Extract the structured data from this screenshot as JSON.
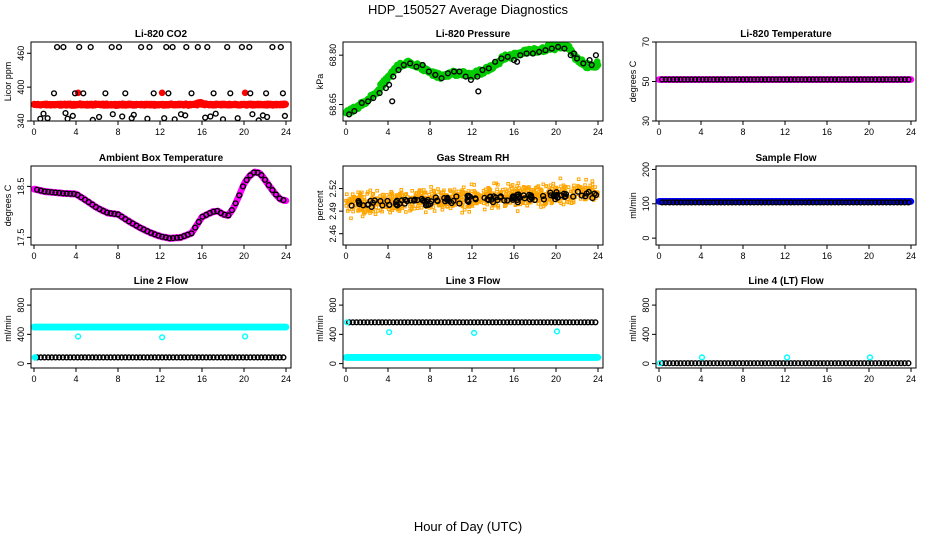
{
  "figure": {
    "title": "HDP_150527  Average Diagnostics",
    "xlabel": "Hour of Day (UTC)"
  },
  "chart_data": [
    {
      "id": "co2",
      "type": "scatter",
      "title": "Li-820 CO2",
      "ylabel": "Licor ppm",
      "xlim": [
        0,
        24
      ],
      "ylim": [
        340,
        480
      ],
      "xticks": [
        0,
        4,
        8,
        12,
        16,
        20,
        24
      ],
      "xtick_labels": [
        "0",
        "4",
        "8",
        "12",
        "16",
        "20",
        "24"
      ],
      "yticks": [
        340,
        400,
        460
      ],
      "ytick_labels": [
        "340",
        "400",
        "460"
      ],
      "series": [
        {
          "color": "#ff0000",
          "filled": true,
          "kind": "band",
          "x_range": [
            0,
            24
          ],
          "y_center": 369,
          "y_spread": 2,
          "bumps": [
            {
              "x": 15.8,
              "y": 374
            },
            {
              "x": 4.2,
              "y": 390
            },
            {
              "x": 12.2,
              "y": 390
            },
            {
              "x": 20.1,
              "y": 390
            }
          ]
        },
        {
          "color": "#000000",
          "filled": false,
          "kind": "points",
          "x": [
            2.2,
            2.8,
            4.3,
            5.4,
            7.4,
            8.1,
            10.2,
            11.0,
            12.6,
            13.2,
            14.5,
            15.6,
            16.5,
            18.4,
            19.8,
            20.5,
            22.7,
            23.5,
            1.9,
            3.9,
            4.7,
            6.8,
            8.7,
            11.4,
            12.8,
            15.0,
            17.1,
            18.7,
            20.6,
            22.1,
            23.7,
            0.6,
            1.3,
            3.2,
            3.7,
            5.6,
            6.2,
            8.4,
            9.3,
            10.8,
            12.4,
            13.4,
            14.4,
            16.3,
            16.8,
            18.0,
            19.4,
            21.4,
            22.2,
            23.9,
            0.9,
            3.0,
            7.5,
            9.5,
            14.0,
            17.3,
            20.8,
            21.8
          ],
          "y": [
            471,
            471,
            471,
            471,
            471,
            471,
            471,
            471,
            471,
            471,
            471,
            471,
            471,
            471,
            471,
            471,
            471,
            471,
            389,
            389,
            389,
            389,
            389,
            389,
            389,
            389,
            389,
            389,
            389,
            389,
            389,
            344,
            345,
            344,
            349,
            342,
            347,
            348,
            345,
            344,
            345,
            343,
            350,
            346,
            348,
            343,
            345,
            341,
            347,
            349,
            353,
            354,
            352,
            351,
            352,
            353,
            352,
            350
          ]
        }
      ]
    },
    {
      "id": "pressure",
      "type": "scatter",
      "title": "Li-820 Pressure",
      "ylabel": "kPa",
      "xlim": [
        0,
        24
      ],
      "ylim": [
        68.6,
        68.84
      ],
      "xticks": [
        0,
        4,
        8,
        12,
        16,
        20,
        24
      ],
      "xtick_labels": [
        "0",
        "4",
        "8",
        "12",
        "16",
        "20",
        "24"
      ],
      "yticks": [
        68.65,
        68.8
      ],
      "ytick_labels": [
        "68.65",
        "68.80"
      ],
      "series": [
        {
          "color": "#00cc00",
          "filled": true,
          "kind": "curve",
          "x": [
            0,
            1,
            2,
            3,
            4,
            5,
            6,
            7,
            8,
            9,
            10,
            11,
            12,
            13,
            14,
            15,
            16,
            17,
            18,
            19,
            20,
            21,
            22,
            23,
            24
          ],
          "y": [
            68.625,
            68.64,
            68.66,
            68.69,
            68.73,
            68.77,
            68.775,
            68.765,
            68.75,
            68.735,
            68.745,
            68.745,
            68.74,
            68.75,
            68.765,
            68.79,
            68.8,
            68.81,
            68.815,
            68.82,
            68.825,
            68.83,
            68.79,
            68.765,
            68.77
          ],
          "spread": 0.012
        },
        {
          "color": "#000000",
          "filled": false,
          "kind": "points",
          "x": [
            0.3,
            0.8,
            1.5,
            2.1,
            2.6,
            3.2,
            3.8,
            4.1,
            4.5,
            5.0,
            5.5,
            6.1,
            6.7,
            7.3,
            7.9,
            8.5,
            9.1,
            9.7,
            10.3,
            10.8,
            11.4,
            11.9,
            12.5,
            13.0,
            13.6,
            14.2,
            14.8,
            15.4,
            16.0,
            16.6,
            17.2,
            17.8,
            18.4,
            19.0,
            19.6,
            20.2,
            20.8,
            21.4,
            22.0,
            22.6,
            23.2,
            23.8,
            4.4,
            12.6,
            16.3,
            21.7,
            23.4
          ],
          "y": [
            68.62,
            68.63,
            68.655,
            68.66,
            68.67,
            68.685,
            68.7,
            68.71,
            68.735,
            68.755,
            68.77,
            68.775,
            68.765,
            68.77,
            68.75,
            68.74,
            68.73,
            68.745,
            68.75,
            68.75,
            68.735,
            68.725,
            68.735,
            68.755,
            68.76,
            68.78,
            68.79,
            68.795,
            68.785,
            68.8,
            68.805,
            68.805,
            68.81,
            68.815,
            68.82,
            68.825,
            68.82,
            68.8,
            68.79,
            68.775,
            68.785,
            68.8,
            68.66,
            68.69,
            68.78,
            68.805,
            68.77
          ]
        }
      ]
    },
    {
      "id": "temp",
      "type": "scatter",
      "title": "Li-820 Temperature",
      "ylabel": "degrees C",
      "xlim": [
        0,
        24
      ],
      "ylim": [
        30,
        70
      ],
      "xticks": [
        0,
        4,
        8,
        12,
        16,
        20,
        24
      ],
      "xtick_labels": [
        "0",
        "4",
        "8",
        "12",
        "16",
        "20",
        "24"
      ],
      "yticks": [
        30,
        50,
        70
      ],
      "ytick_labels": [
        "30",
        "50",
        "70"
      ],
      "series": [
        {
          "color": "#ff00ff",
          "filled": true,
          "kind": "line",
          "x_range": [
            0,
            24
          ],
          "y": 51.0
        },
        {
          "color": "#000000",
          "filled": false,
          "kind": "row",
          "x_range": [
            0.3,
            24
          ],
          "step": 0.35,
          "y": 51.0
        }
      ]
    },
    {
      "id": "ambient",
      "type": "scatter",
      "title": "Ambient Box Temperature",
      "ylabel": "degrees C",
      "xlim": [
        0,
        24
      ],
      "ylim": [
        17.35,
        18.9
      ],
      "xticks": [
        0,
        4,
        8,
        12,
        16,
        20,
        24
      ],
      "xtick_labels": [
        "0",
        "4",
        "8",
        "12",
        "16",
        "20",
        "24"
      ],
      "yticks": [
        17.5,
        18.5
      ],
      "ytick_labels": [
        "17.5",
        "18.5"
      ],
      "series": [
        {
          "color": "#ff00ff",
          "filled": true,
          "kind": "curve",
          "x": [
            0,
            1,
            2,
            3,
            4,
            5,
            6,
            7,
            8,
            9,
            10,
            11,
            12,
            13,
            14,
            15,
            16,
            17,
            17.5,
            18,
            18.5,
            19,
            19.5,
            20,
            20.5,
            21,
            21.5,
            22,
            22.5,
            23,
            23.5,
            24
          ],
          "y": [
            18.45,
            18.4,
            18.38,
            18.36,
            18.35,
            18.22,
            18.08,
            17.98,
            17.95,
            17.82,
            17.7,
            17.6,
            17.52,
            17.48,
            17.5,
            17.58,
            17.9,
            18.0,
            18.02,
            17.95,
            17.93,
            18.08,
            18.3,
            18.55,
            18.7,
            18.78,
            18.76,
            18.63,
            18.48,
            18.35,
            18.24,
            18.22
          ],
          "spread": 0.01
        },
        {
          "color": "#000000",
          "filled": false,
          "kind": "follow",
          "step": 0.35,
          "x_range": [
            0.3,
            23.9
          ]
        }
      ]
    },
    {
      "id": "rh",
      "type": "scatter",
      "title": "Gas Stream RH",
      "ylabel": "percent",
      "xlim": [
        0,
        24
      ],
      "ylim": [
        2.445,
        2.55
      ],
      "xticks": [
        0,
        4,
        8,
        12,
        16,
        20,
        24
      ],
      "xtick_labels": [
        "0",
        "4",
        "8",
        "12",
        "16",
        "20",
        "24"
      ],
      "yticks": [
        2.46,
        2.49,
        2.52
      ],
      "ytick_labels": [
        "2.46",
        "2.49",
        "2.52"
      ],
      "series": [
        {
          "color": "#ffa500",
          "filled": true,
          "kind": "cloud",
          "x_range": [
            0,
            24
          ],
          "y_start": 2.5,
          "y_end": 2.515,
          "spread": 0.022
        },
        {
          "color": "#000000",
          "filled": false,
          "kind": "cloud",
          "x_range": [
            0.3,
            24
          ],
          "y_start": 2.499,
          "y_end": 2.513,
          "spread": 0.009
        }
      ]
    },
    {
      "id": "sample",
      "type": "scatter",
      "title": "Sample Flow",
      "ylabel": "ml/min",
      "xlim": [
        0,
        24
      ],
      "ylim": [
        -20,
        210
      ],
      "xticks": [
        0,
        4,
        8,
        12,
        16,
        20,
        24
      ],
      "xtick_labels": [
        "0",
        "4",
        "8",
        "12",
        "16",
        "20",
        "24"
      ],
      "yticks": [
        0,
        100,
        200
      ],
      "ytick_labels": [
        "0",
        "100",
        "200"
      ],
      "series": [
        {
          "color": "#0000ff",
          "filled": true,
          "kind": "line",
          "x_range": [
            0,
            24
          ],
          "y": 107
        },
        {
          "color": "#000000",
          "filled": false,
          "kind": "row",
          "x_range": [
            0.3,
            24
          ],
          "step": 0.35,
          "y": 104
        }
      ]
    },
    {
      "id": "line2",
      "type": "scatter",
      "title": "Line 2 Flow",
      "ylabel": "ml/min",
      "xlim": [
        0,
        24
      ],
      "ylim": [
        -60,
        1020
      ],
      "xticks": [
        0,
        4,
        8,
        12,
        16,
        20,
        24
      ],
      "xtick_labels": [
        "0",
        "4",
        "8",
        "12",
        "16",
        "20",
        "24"
      ],
      "yticks": [
        0,
        400,
        800
      ],
      "ytick_labels": [
        "0",
        "400",
        "800"
      ],
      "series": [
        {
          "color": "#00ffff",
          "filled": true,
          "kind": "line",
          "x_range": [
            0,
            24
          ],
          "y": 500
        },
        {
          "color": "#00ffff",
          "filled": false,
          "kind": "points",
          "x": [
            4.2,
            12.2,
            20.1
          ],
          "y": [
            370,
            360,
            370
          ]
        },
        {
          "color": "#000000",
          "filled": false,
          "kind": "row",
          "x_range": [
            0.3,
            24
          ],
          "step": 0.35,
          "y": 85
        },
        {
          "color": "#00ffff",
          "filled": true,
          "kind": "points",
          "x": [
            0.1
          ],
          "y": [
            85
          ]
        }
      ]
    },
    {
      "id": "line3",
      "type": "scatter",
      "title": "Line 3 Flow",
      "ylabel": "ml/min",
      "xlim": [
        0,
        24
      ],
      "ylim": [
        -60,
        1020
      ],
      "xticks": [
        0,
        4,
        8,
        12,
        16,
        20,
        24
      ],
      "xtick_labels": [
        "0",
        "4",
        "8",
        "12",
        "16",
        "20",
        "24"
      ],
      "yticks": [
        0,
        400,
        800
      ],
      "ytick_labels": [
        "0",
        "400",
        "800"
      ],
      "series": [
        {
          "color": "#00ffff",
          "filled": true,
          "kind": "line",
          "x_range": [
            0,
            24
          ],
          "y": 85
        },
        {
          "color": "#000000",
          "filled": false,
          "kind": "row",
          "x_range": [
            0.3,
            24
          ],
          "step": 0.35,
          "y": 565
        },
        {
          "color": "#00ffff",
          "filled": false,
          "kind": "points",
          "x": [
            0.1,
            4.1,
            12.2,
            20.1
          ],
          "y": [
            565,
            430,
            420,
            440
          ]
        }
      ]
    },
    {
      "id": "line4",
      "type": "scatter",
      "title": "Line 4 (LT) Flow",
      "ylabel": "ml/min",
      "xlim": [
        0,
        24
      ],
      "ylim": [
        -60,
        1020
      ],
      "xticks": [
        0,
        4,
        8,
        12,
        16,
        20,
        24
      ],
      "xtick_labels": [
        "0",
        "4",
        "8",
        "12",
        "16",
        "20",
        "24"
      ],
      "yticks": [
        0,
        400,
        800
      ],
      "ytick_labels": [
        "0",
        "400",
        "800"
      ],
      "series": [
        {
          "color": "#000000",
          "filled": false,
          "kind": "row",
          "x_range": [
            0.3,
            24
          ],
          "step": 0.35,
          "y": 5
        },
        {
          "color": "#00ffff",
          "filled": false,
          "kind": "points",
          "x": [
            0.1,
            4.1,
            12.2,
            20.1
          ],
          "y": [
            5,
            85,
            85,
            85
          ]
        }
      ]
    }
  ]
}
